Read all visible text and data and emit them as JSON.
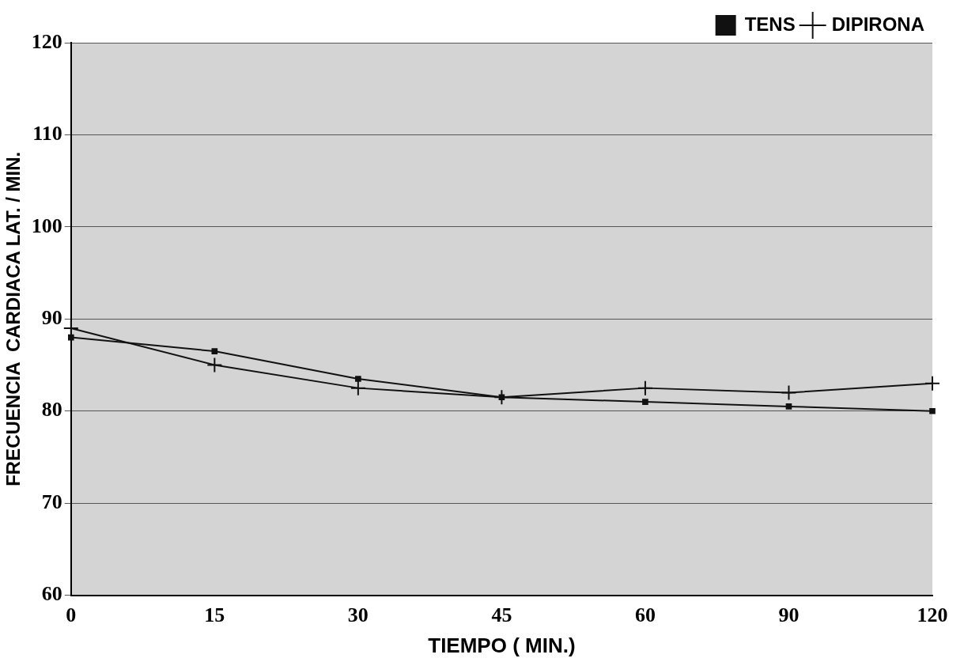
{
  "chart_data": {
    "type": "line",
    "xlabel": "TIEMPO ( MIN.)",
    "ylabel": "FRECUENCIA  CARDIACA LAT. / MIN.",
    "categories": [
      "0",
      "15",
      "30",
      "45",
      "60",
      "90",
      "120"
    ],
    "series": [
      {
        "name": "TENS",
        "color": "#111111",
        "marker": "square",
        "values": [
          88,
          86.5,
          83.5,
          81.5,
          81,
          80.5,
          80
        ]
      },
      {
        "name": "DIPIRONA",
        "color": "#111111",
        "marker": "cross",
        "values": [
          89,
          85,
          82.5,
          81.5,
          82.5,
          82,
          83
        ]
      }
    ],
    "ylim": [
      60,
      120
    ],
    "yticks": [
      60,
      70,
      80,
      90,
      100,
      110,
      120
    ],
    "grid": "y",
    "legend": "top right",
    "line_style": "solid"
  }
}
